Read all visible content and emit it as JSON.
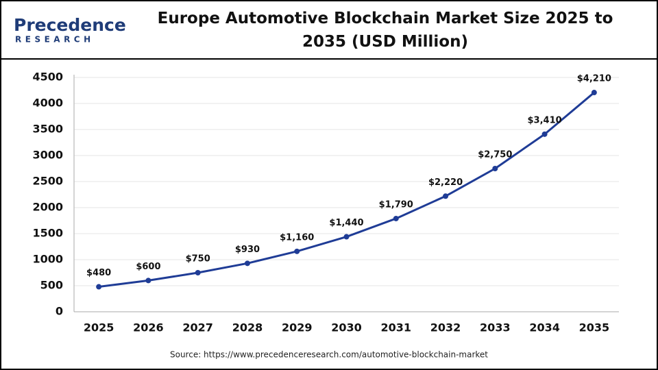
{
  "logo": {
    "name": "Precedence",
    "tagline": "RESEARCH"
  },
  "chart_data": {
    "type": "line",
    "title": "Europe Automotive Blockchain Market Size 2025 to 2035 (USD Million)",
    "categories": [
      "2025",
      "2026",
      "2027",
      "2028",
      "2029",
      "2030",
      "2031",
      "2032",
      "2033",
      "2034",
      "2035"
    ],
    "values": [
      480,
      600,
      750,
      930,
      1160,
      1440,
      1790,
      2220,
      2750,
      3410,
      4210
    ],
    "value_labels": [
      "$480",
      "$600",
      "$750",
      "$930",
      "$1,160",
      "$1,440",
      "$1,790",
      "$2,220",
      "$2,750",
      "$3,410",
      "$4,210"
    ],
    "color": "#1f3c96",
    "ylim": [
      0,
      4500
    ],
    "yticks": [
      0,
      500,
      1000,
      1500,
      2000,
      2500,
      3000,
      3500,
      4000,
      4500
    ],
    "grid": true,
    "source": "Source: https://www.precedenceresearch.com/automotive-blockchain-market"
  }
}
